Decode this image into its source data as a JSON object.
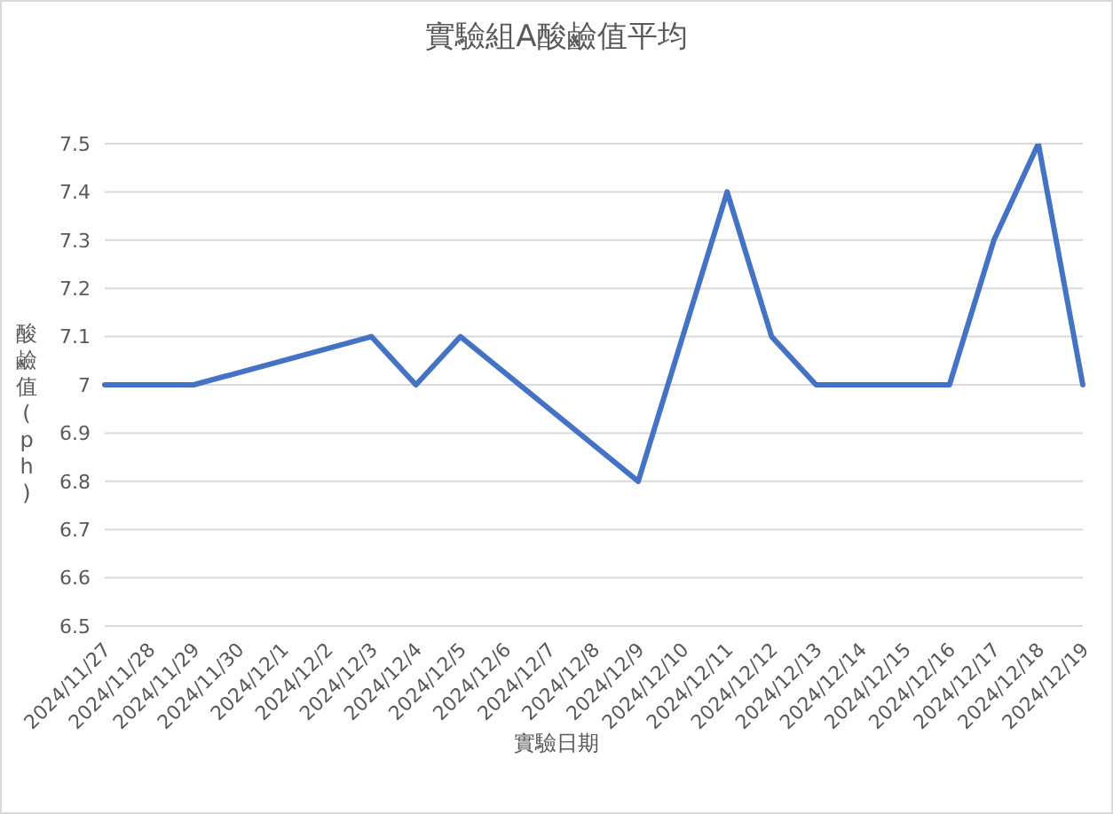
{
  "chart_data": {
    "type": "line",
    "title": "實驗組A酸鹼值平均",
    "xlabel": "實驗日期",
    "ylabel": "酸鹼值(ph)",
    "categories": [
      "2024/11/27",
      "2024/11/28",
      "2024/11/29",
      "2024/11/30",
      "2024/12/1",
      "2024/12/2",
      "2024/12/3",
      "2024/12/4",
      "2024/12/5",
      "2024/12/6",
      "2024/12/7",
      "2024/12/8",
      "2024/12/9",
      "2024/12/10",
      "2024/12/11",
      "2024/12/12",
      "2024/12/13",
      "2024/12/14",
      "2024/12/15",
      "2024/12/16",
      "2024/12/17",
      "2024/12/18",
      "2024/12/19"
    ],
    "series": [
      {
        "color": "#4472c4",
        "values": [
          7,
          7,
          7,
          null,
          null,
          null,
          7.1,
          7,
          7.1,
          null,
          null,
          null,
          6.8,
          null,
          7.4,
          7.1,
          7,
          7,
          7,
          7,
          7.3,
          7.5,
          7
        ]
      }
    ],
    "ylim": [
      6.5,
      7.5
    ],
    "yticks": [
      6.5,
      6.6,
      6.7,
      6.8,
      6.9,
      7,
      7.1,
      7.2,
      7.3,
      7.4,
      7.5
    ],
    "grid": "y",
    "legend": false,
    "marker": "none",
    "line_style": "solid"
  }
}
